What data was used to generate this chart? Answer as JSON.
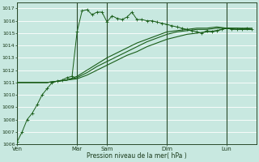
{
  "xlabel": "Pression niveau de la mer( hPa )",
  "ylim": [
    1006,
    1017.5
  ],
  "yticks": [
    1006,
    1007,
    1008,
    1009,
    1010,
    1011,
    1012,
    1013,
    1014,
    1015,
    1016,
    1017
  ],
  "background_color": "#c8e8e0",
  "grid_color": "#ffffff",
  "line_color": "#1a5e1a",
  "day_labels": [
    "Ven",
    "Mar",
    "Sam",
    "Dim",
    "Lun"
  ],
  "day_positions": [
    0,
    12,
    18,
    30,
    42
  ],
  "xlim": [
    0,
    48
  ],
  "series1_x": [
    0,
    1,
    2,
    3,
    4,
    5,
    6,
    7,
    8,
    9,
    10,
    11,
    12,
    13,
    14,
    15,
    16,
    17,
    18,
    19,
    20,
    21,
    22,
    23,
    24,
    25,
    26,
    27,
    28,
    29,
    30,
    31,
    32,
    33,
    34,
    35,
    36,
    37,
    38,
    39,
    40,
    41,
    42,
    43,
    44,
    45,
    46,
    47
  ],
  "series1_y": [
    1006.2,
    1007.0,
    1008.0,
    1008.5,
    1009.2,
    1010.0,
    1010.5,
    1011.0,
    1011.1,
    1011.2,
    1011.4,
    1011.5,
    1015.1,
    1016.8,
    1016.9,
    1016.5,
    1016.7,
    1016.7,
    1015.9,
    1016.4,
    1016.2,
    1016.1,
    1016.3,
    1016.7,
    1016.1,
    1016.1,
    1016.0,
    1016.0,
    1015.9,
    1015.8,
    1015.7,
    1015.6,
    1015.5,
    1015.4,
    1015.3,
    1015.2,
    1015.1,
    1015.0,
    1015.2,
    1015.1,
    1015.2,
    1015.3,
    1015.4,
    1015.3,
    1015.3,
    1015.3,
    1015.4,
    1015.3
  ],
  "series2_x": [
    0,
    2,
    4,
    6,
    8,
    10,
    12,
    14,
    16,
    18,
    20,
    22,
    24,
    26,
    28,
    30,
    32,
    34,
    36,
    38,
    40,
    42,
    44,
    46,
    47
  ],
  "series2_y": [
    1011.0,
    1011.0,
    1011.0,
    1011.0,
    1011.1,
    1011.2,
    1011.3,
    1011.6,
    1012.0,
    1012.4,
    1012.8,
    1013.2,
    1013.5,
    1013.9,
    1014.2,
    1014.5,
    1014.7,
    1014.9,
    1015.0,
    1015.1,
    1015.2,
    1015.4,
    1015.3,
    1015.3,
    1015.3
  ],
  "series3_x": [
    0,
    2,
    4,
    6,
    8,
    10,
    12,
    14,
    16,
    18,
    20,
    22,
    24,
    26,
    28,
    30,
    32,
    34,
    36,
    38,
    40,
    42,
    44,
    46,
    47
  ],
  "series3_y": [
    1011.0,
    1011.0,
    1011.0,
    1011.0,
    1011.1,
    1011.2,
    1011.5,
    1012.0,
    1012.5,
    1013.0,
    1013.4,
    1013.8,
    1014.2,
    1014.5,
    1014.8,
    1015.1,
    1015.2,
    1015.3,
    1015.4,
    1015.4,
    1015.5,
    1015.4,
    1015.4,
    1015.4,
    1015.4
  ],
  "series4_x": [
    0,
    2,
    4,
    6,
    8,
    10,
    12,
    14,
    16,
    18,
    20,
    22,
    24,
    26,
    28,
    30,
    32,
    34,
    36,
    38,
    40,
    42,
    44,
    46,
    47
  ],
  "series4_y": [
    1011.0,
    1011.0,
    1011.0,
    1011.0,
    1011.1,
    1011.2,
    1011.4,
    1011.8,
    1012.3,
    1012.7,
    1013.1,
    1013.5,
    1013.9,
    1014.3,
    1014.6,
    1014.9,
    1015.1,
    1015.2,
    1015.3,
    1015.3,
    1015.4,
    1015.4,
    1015.4,
    1015.3,
    1015.3
  ]
}
